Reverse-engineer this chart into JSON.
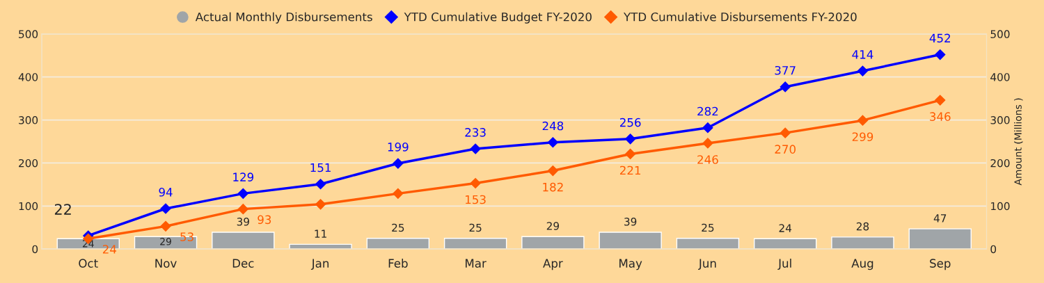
{
  "chart_data": {
    "type": "bar",
    "categories": [
      "Oct",
      "Nov",
      "Dec",
      "Jan",
      "Feb",
      "Mar",
      "Apr",
      "May",
      "Jun",
      "Jul",
      "Aug",
      "Sep"
    ],
    "series": [
      {
        "name": "Actual Monthly Disbursements",
        "color": "#a0a5a8",
        "values": [
          24,
          29,
          39,
          11,
          25,
          25,
          29,
          39,
          25,
          24,
          28,
          47
        ],
        "value_labels": [
          "24",
          "29",
          "39",
          "11",
          "25",
          "25",
          "29",
          "39",
          "25",
          "24",
          "28",
          "47"
        ]
      },
      {
        "name": "YTD Cumulative Budget FY-2020",
        "type": "line",
        "axis": "y2",
        "color": "#0000ff",
        "values": [
          31,
          94,
          129,
          151,
          199,
          233,
          248,
          256,
          282,
          377,
          414,
          452
        ],
        "value_labels": [
          null,
          "94",
          "129",
          "151",
          "199",
          "233",
          "248",
          "256",
          "282",
          "377",
          "414",
          "452"
        ]
      },
      {
        "name": "YTD Cumulative Disbursements FY-2020",
        "type": "line",
        "axis": "y2",
        "color": "#ff5a00",
        "values": [
          24,
          53,
          93,
          104,
          129,
          153,
          182,
          221,
          246,
          270,
          299,
          346
        ],
        "value_labels": [
          "24",
          "53",
          "93",
          null,
          null,
          "153",
          "182",
          "221",
          "246",
          "270",
          "299",
          "346"
        ]
      }
    ],
    "ylim": [
      0,
      500
    ],
    "yticks": [
      0,
      100,
      200,
      300,
      400,
      500
    ],
    "y2lim": [
      0,
      500
    ],
    "y2ticks": [
      0,
      100,
      200,
      300,
      400,
      500
    ],
    "y2label": "Amount (Millions )",
    "annotations": [
      {
        "text": "22",
        "x": "Oct",
        "y": 22
      }
    ],
    "grid": "y",
    "legend": "top",
    "marker": "diamond",
    "line_style": "solid"
  }
}
